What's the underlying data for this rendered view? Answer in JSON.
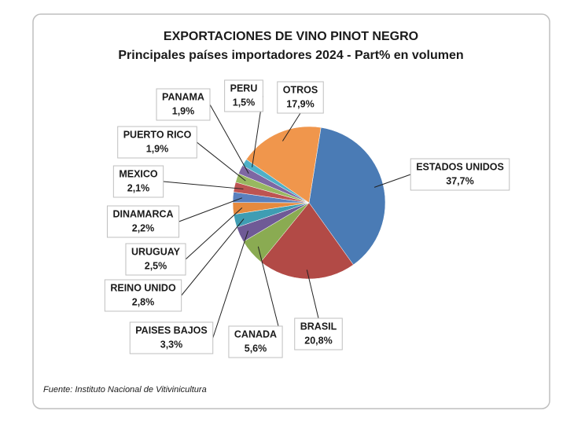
{
  "chart_data": {
    "type": "pie",
    "title": "EXPORTACIONES DE VINO PINOT NEGRO",
    "subtitle": "Principales países importadores 2024 - Part% en volumen",
    "source": "Fuente: Instituto Nacional de Vitivinicultura",
    "categories": [
      "ESTADOS UNIDOS",
      "BRASIL",
      "CANADA",
      "PAISES BAJOS",
      "REINO UNIDO",
      "URUGUAY",
      "DINAMARCA",
      "MEXICO",
      "PUERTO RICO",
      "PANAMA",
      "PERU",
      "OTROS"
    ],
    "values": [
      37.7,
      20.8,
      5.6,
      3.3,
      2.8,
      2.5,
      2.2,
      2.1,
      1.9,
      1.9,
      1.5,
      17.9
    ],
    "value_labels": [
      "37,7%",
      "20,8%",
      "5,6%",
      "3,3%",
      "2,8%",
      "2,5%",
      "2,2%",
      "2,1%",
      "1,9%",
      "1,9%",
      "1,5%",
      "17,9%"
    ],
    "colors": [
      "#4a7bb5",
      "#b24a46",
      "#8aab52",
      "#6f5a96",
      "#3f9db3",
      "#e68a3e",
      "#5a80bd",
      "#bd5452",
      "#98b860",
      "#7e67a3",
      "#4fb0c8",
      "#f0964c"
    ]
  }
}
